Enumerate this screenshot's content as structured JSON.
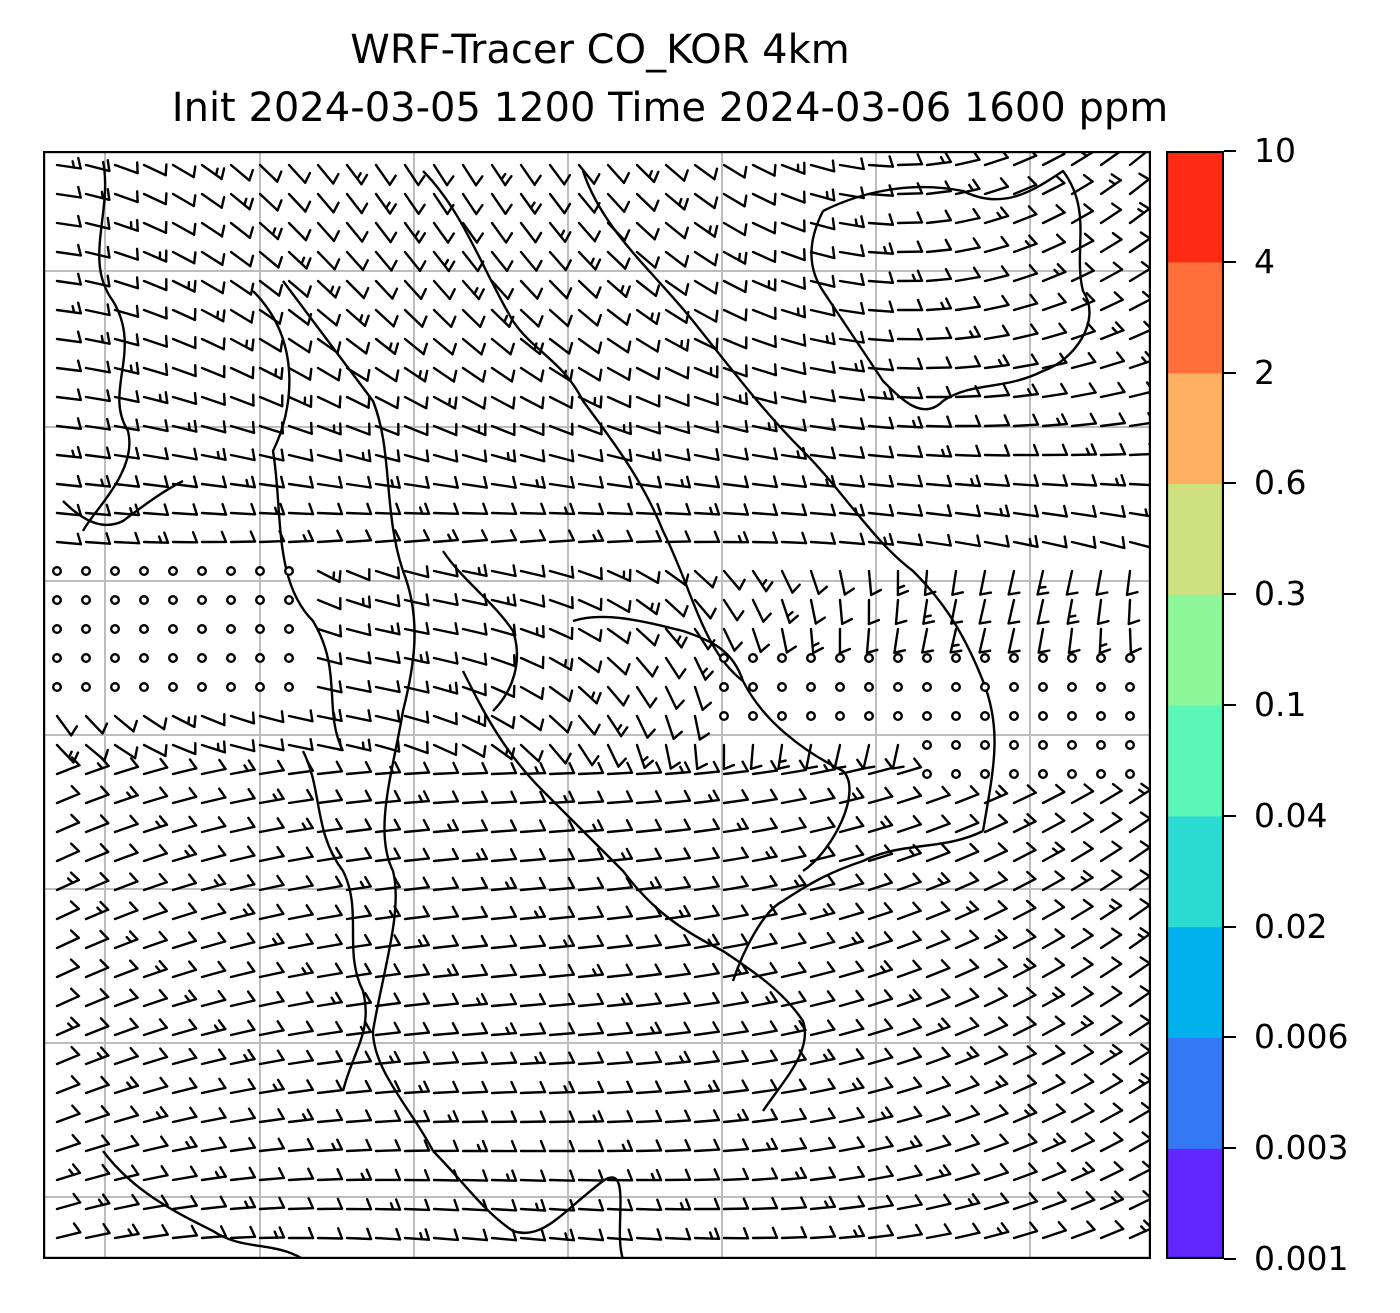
{
  "title": {
    "line1": "WRF-Tracer CO_KOR 4km",
    "line2": "Init 2024-03-05 1200 Time 2024-03-06 1600 ppm"
  },
  "colorbar": {
    "levels": [
      "0.001",
      "0.003",
      "0.006",
      "0.02",
      "0.04",
      "0.1",
      "0.3",
      "0.6",
      "2",
      "4",
      "10"
    ],
    "colors": [
      "#6226ff",
      "#3478f2",
      "#00b2ec",
      "#2cdbd2",
      "#5cf7b8",
      "#8ef79a",
      "#cfe07f",
      "#ffb061",
      "#ff6e3b",
      "#ff2a14"
    ]
  },
  "map": {
    "gridlines": "on",
    "grid_color": "#bdbdbd",
    "overlay": "wind barbs and calm circles",
    "coastline_color": "#000000"
  }
}
